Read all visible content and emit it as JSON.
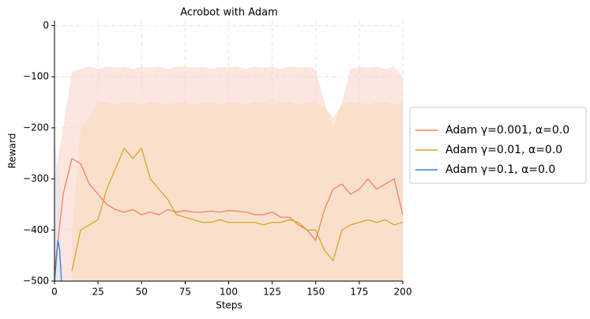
{
  "chart_data": {
    "type": "line",
    "title": "Acrobot with Adam",
    "x_label": "Steps",
    "y_label": "Reward",
    "xlim": [
      0,
      200
    ],
    "ylim": [
      -500,
      10
    ],
    "xticks": [
      0,
      25,
      50,
      75,
      100,
      125,
      150,
      175,
      200
    ],
    "yticks": [
      {
        "value": -500,
        "label": "−500"
      },
      {
        "value": -400,
        "label": "−400"
      },
      {
        "value": -300,
        "label": "−300"
      },
      {
        "value": -200,
        "label": "−200"
      },
      {
        "value": -100,
        "label": "−100"
      },
      0
    ],
    "grid": true,
    "legend": "outside right",
    "series": [
      {
        "name": "Adam γ=0.001, α=0.0",
        "color": "#f4805c",
        "band_color": "#fbd5cb",
        "x": [
          0,
          5,
          10,
          15,
          20,
          25,
          30,
          35,
          40,
          45,
          50,
          55,
          60,
          65,
          70,
          75,
          80,
          85,
          90,
          95,
          100,
          105,
          110,
          115,
          120,
          125,
          130,
          135,
          140,
          145,
          150,
          155,
          160,
          165,
          170,
          175,
          180,
          185,
          190,
          195,
          200
        ],
        "values": [
          -480,
          -330,
          -260,
          -270,
          -310,
          -330,
          -350,
          -360,
          -365,
          -360,
          -370,
          -365,
          -370,
          -360,
          -365,
          -362,
          -365,
          -365,
          -363,
          -365,
          -362,
          -363,
          -365,
          -370,
          -370,
          -365,
          -375,
          -375,
          -390,
          -400,
          -420,
          -360,
          -320,
          -310,
          -330,
          -320,
          -300,
          -320,
          -310,
          -300,
          -370
        ],
        "upper": [
          -300,
          -200,
          -90,
          -85,
          -80,
          -85,
          -80,
          -82,
          -80,
          -85,
          -80,
          -82,
          -80,
          -85,
          -80,
          -80,
          -82,
          -80,
          -85,
          -80,
          -82,
          -80,
          -85,
          -80,
          -82,
          -80,
          -85,
          -80,
          -82,
          -80,
          -85,
          -150,
          -200,
          -150,
          -85,
          -80,
          -82,
          -80,
          -85,
          -80,
          -100
        ],
        "lower": [
          -500,
          -500,
          -500,
          -500,
          -500,
          -500,
          -500,
          -500,
          -500,
          -500,
          -500,
          -500,
          -500,
          -500,
          -500,
          -500,
          -500,
          -500,
          -500,
          -500,
          -500,
          -500,
          -500,
          -500,
          -500,
          -500,
          -500,
          -500,
          -500,
          -500,
          -500,
          -500,
          -500,
          -500,
          -500,
          -500,
          -500,
          -500,
          -500,
          -500,
          -500
        ]
      },
      {
        "name": "Adam γ=0.01, α=0.0",
        "color": "#d9a521",
        "band_color": "#f6dcbf",
        "x": [
          0,
          5,
          10,
          15,
          20,
          25,
          30,
          35,
          40,
          45,
          50,
          55,
          60,
          65,
          70,
          75,
          80,
          85,
          90,
          95,
          100,
          105,
          110,
          115,
          120,
          125,
          130,
          135,
          140,
          145,
          150,
          155,
          160,
          165,
          170,
          175,
          180,
          185,
          190,
          195,
          200
        ],
        "values": [
          null,
          null,
          -480,
          -400,
          -390,
          -380,
          -320,
          -280,
          -240,
          -260,
          -240,
          -300,
          -320,
          -340,
          -370,
          -375,
          -380,
          -385,
          -385,
          -380,
          -385,
          -385,
          -385,
          -385,
          -390,
          -385,
          -385,
          -380,
          -385,
          -400,
          -400,
          -440,
          -460,
          -400,
          -390,
          -385,
          -380,
          -385,
          -380,
          -390,
          -385
        ],
        "upper": [
          null,
          null,
          -400,
          -200,
          -180,
          -150,
          -150,
          -155,
          -150,
          -150,
          -155,
          -150,
          -150,
          -155,
          -150,
          -150,
          -155,
          -150,
          -150,
          -155,
          -150,
          -150,
          -155,
          -150,
          -150,
          -155,
          -150,
          -150,
          -155,
          -150,
          -150,
          -160,
          -180,
          -155,
          -150,
          -150,
          -155,
          -150,
          -150,
          -155,
          -150
        ],
        "lower": [
          null,
          null,
          -500,
          -500,
          -500,
          -500,
          -500,
          -500,
          -500,
          -500,
          -500,
          -500,
          -500,
          -500,
          -500,
          -500,
          -500,
          -500,
          -500,
          -500,
          -500,
          -500,
          -500,
          -500,
          -500,
          -500,
          -500,
          -500,
          -500,
          -500,
          -500,
          -500,
          -500,
          -500,
          -500,
          -500,
          -500,
          -500,
          -500,
          -500,
          -500
        ]
      },
      {
        "name": "Adam γ=0.1, α=0.0",
        "color": "#3b7dd8",
        "band_color": "#dde6f5",
        "x": [
          0,
          1,
          2,
          3,
          4
        ],
        "values": [
          -500,
          -460,
          -420,
          -440,
          -500
        ],
        "upper": [
          -220,
          -250,
          -280,
          -300,
          -400
        ],
        "lower": [
          -500,
          -500,
          -500,
          -500,
          -500
        ]
      }
    ]
  }
}
